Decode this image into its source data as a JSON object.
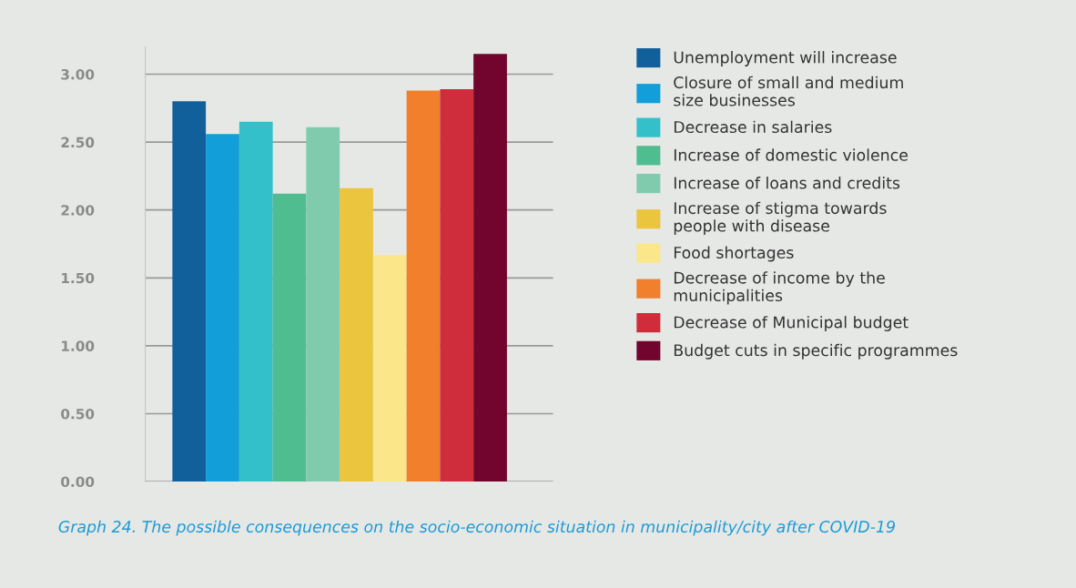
{
  "chart_data": {
    "type": "bar",
    "categories": [
      null
    ],
    "series": [
      {
        "name": "Unemployment will increase",
        "color": "#12609b",
        "values": [
          2.8
        ]
      },
      {
        "name": "Closure of small and medium\nsize businesses",
        "color": "#129ed9",
        "values": [
          2.56
        ]
      },
      {
        "name": "Decrease in salaries",
        "color": "#33c0cb",
        "values": [
          2.65
        ]
      },
      {
        "name": "Increase of domestic violence",
        "color": "#50bd91",
        "values": [
          2.12
        ]
      },
      {
        "name": "Increase of loans and credits",
        "color": "#80cbae",
        "values": [
          2.61
        ]
      },
      {
        "name": "Increase of stigma towards\npeople with disease",
        "color": "#ebc53e",
        "values": [
          2.16
        ]
      },
      {
        "name": "Food shortages",
        "color": "#fbe68a",
        "values": [
          1.67
        ]
      },
      {
        "name": "Decrease of income by the\nmunicipalities",
        "color": "#f17f2c",
        "values": [
          2.88
        ]
      },
      {
        "name": "Decrease of Municipal budget",
        "color": "#cf2c3c",
        "values": [
          2.89
        ]
      },
      {
        "name": "Budget cuts in specific programmes",
        "color": "#71052d",
        "values": [
          3.15
        ]
      }
    ],
    "ylim": [
      0,
      3.2
    ],
    "yticks": [
      {
        "value": 0,
        "label": "0.00"
      },
      {
        "value": 0.5,
        "label": "0.50"
      },
      {
        "value": 1,
        "label": "1.00"
      },
      {
        "value": 1.5,
        "label": "1.50"
      },
      {
        "value": 2,
        "label": "2.00"
      },
      {
        "value": 2.5,
        "label": "2.50"
      },
      {
        "value": 3,
        "label": "3.00"
      }
    ],
    "grid": "y",
    "legend": "right",
    "tick_labels": "y",
    "annotations": [
      "Graph 24. The possible consequences on the socio-economic situation in municipality/city after COVID-19"
    ]
  }
}
